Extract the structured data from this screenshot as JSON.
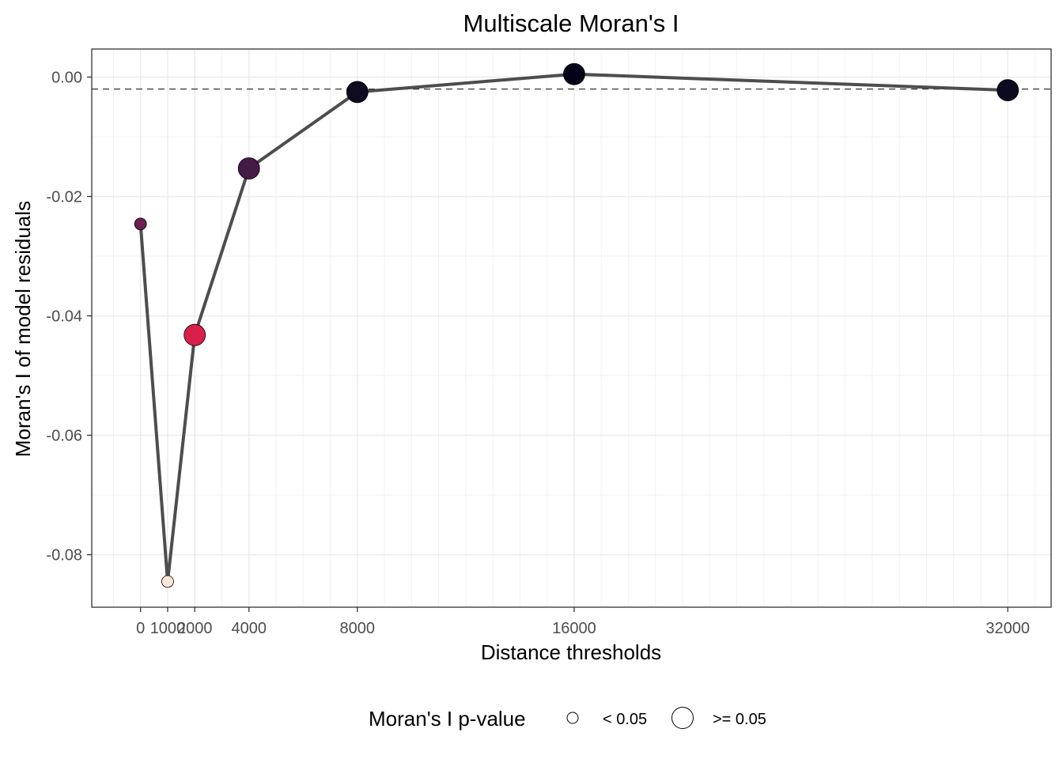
{
  "chart_data": {
    "type": "scatter",
    "title": "Multiscale Moran's I",
    "xlabel": "Distance thresholds",
    "ylabel": "Moran's I of model residuals",
    "xlim": [
      -1800,
      33600
    ],
    "ylim": [
      -0.0888,
      0.0047
    ],
    "x_ticks": [
      0,
      1000,
      2000,
      4000,
      8000,
      16000,
      32000
    ],
    "x_tick_labels": [
      "0",
      "1000",
      "2000",
      "4000",
      "8000",
      "16000",
      "32000"
    ],
    "y_ticks": [
      0,
      -0.02,
      -0.04,
      -0.06,
      -0.08
    ],
    "y_tick_labels": [
      "0.00",
      "-0.02",
      "-0.04",
      "-0.06",
      "-0.08"
    ],
    "reference_line": -0.002,
    "grid": true,
    "legend_placement": "bottom",
    "points": [
      {
        "x": 0,
        "y": -0.0246,
        "p_group": "< 0.05",
        "color": "#6b1f52"
      },
      {
        "x": 1000,
        "y": -0.0845,
        "p_group": "< 0.05",
        "color": "#fbe6d8"
      },
      {
        "x": 2000,
        "y": -0.0432,
        "p_group": ">= 0.05",
        "color": "#d91f4c"
      },
      {
        "x": 4000,
        "y": -0.0153,
        "p_group": ">= 0.05",
        "color": "#451a45"
      },
      {
        "x": 8000,
        "y": -0.0025,
        "p_group": ">= 0.05",
        "color": "#0f0c21"
      },
      {
        "x": 16000,
        "y": 0.0005,
        "p_group": ">= 0.05",
        "color": "#030217"
      },
      {
        "x": 32000,
        "y": -0.0022,
        "p_group": ">= 0.05",
        "color": "#0b0a1e"
      }
    ],
    "legend": {
      "title": "Moran's I p-value",
      "entries": [
        "< 0.05",
        ">= 0.05"
      ]
    }
  }
}
